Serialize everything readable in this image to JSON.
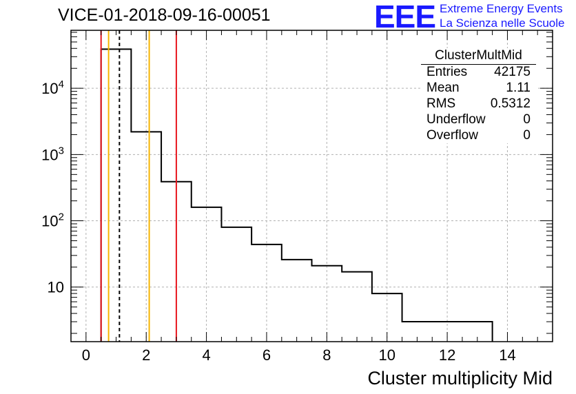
{
  "title": "VICE-01-2018-09-16-00051",
  "logo": {
    "mark": "EEE",
    "line1": "Extreme Energy Events",
    "line2": "La Scienza nelle Scuole",
    "color": "#1a1aff"
  },
  "stats_box": {
    "name": "ClusterMultMid",
    "rows": [
      {
        "key": "Entries",
        "value": "42175"
      },
      {
        "key": "Mean",
        "value": "1.11"
      },
      {
        "key": "RMS",
        "value": "0.5312"
      },
      {
        "key": "Underflow",
        "value": "0"
      },
      {
        "key": "Overflow",
        "value": "0"
      }
    ]
  },
  "chart_data": {
    "type": "histogram",
    "xlabel": "Cluster multiplicity Mid",
    "ylabel": "",
    "yscale": "log",
    "xlim": [
      -0.5,
      15.5
    ],
    "ylim": [
      1.5,
      75000
    ],
    "grid": true,
    "x_ticks": [
      "0",
      "2",
      "4",
      "6",
      "8",
      "10",
      "12",
      "14"
    ],
    "y_ticks": [
      "10",
      "10^2",
      "10^3",
      "10^4"
    ],
    "bins": [
      {
        "x0": 0.5,
        "x1": 1.5,
        "y": 39000
      },
      {
        "x0": 1.5,
        "x1": 2.5,
        "y": 2200
      },
      {
        "x0": 2.5,
        "x1": 3.5,
        "y": 390
      },
      {
        "x0": 3.5,
        "x1": 4.5,
        "y": 160
      },
      {
        "x0": 4.5,
        "x1": 5.5,
        "y": 80
      },
      {
        "x0": 5.5,
        "x1": 6.5,
        "y": 44
      },
      {
        "x0": 6.5,
        "x1": 7.5,
        "y": 26
      },
      {
        "x0": 7.5,
        "x1": 8.5,
        "y": 21
      },
      {
        "x0": 8.5,
        "x1": 9.5,
        "y": 17
      },
      {
        "x0": 9.5,
        "x1": 10.5,
        "y": 8
      },
      {
        "x0": 10.5,
        "x1": 11.5,
        "y": 3
      },
      {
        "x0": 11.5,
        "x1": 12.5,
        "y": 3
      },
      {
        "x0": 12.5,
        "x1": 13.5,
        "y": 3
      }
    ],
    "vertical_lines": [
      {
        "x": 0.5,
        "color": "#e8151d",
        "style": "solid"
      },
      {
        "x": 0.75,
        "color": "#f6b400",
        "style": "solid"
      },
      {
        "x": 1.11,
        "color": "#000000",
        "style": "dashed"
      },
      {
        "x": 2.1,
        "color": "#f6b400",
        "style": "solid"
      },
      {
        "x": 3.0,
        "color": "#e8151d",
        "style": "solid"
      }
    ]
  }
}
